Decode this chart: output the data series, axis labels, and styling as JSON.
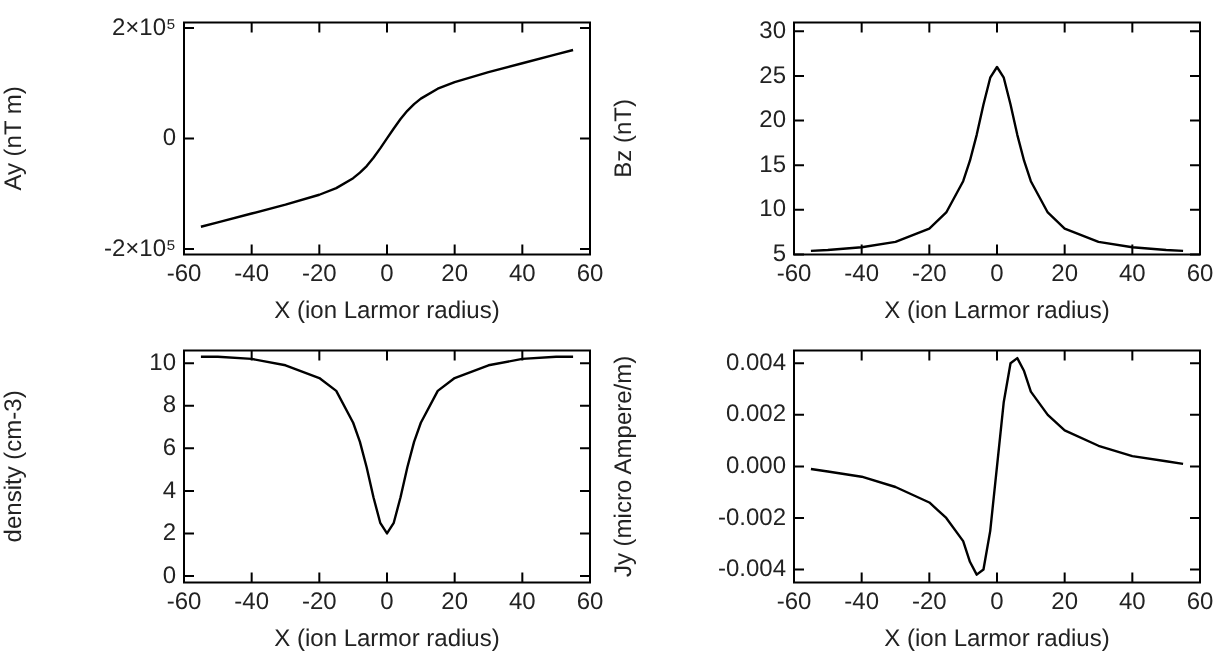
{
  "chart_data": [
    {
      "type": "line",
      "xlabel": "X (ion Larmor radius)",
      "ylabel": "Ay (nT m)",
      "marker": "none",
      "color": "#000000",
      "x": [
        -55,
        -50,
        -40,
        -30,
        -20,
        -15,
        -10,
        -8,
        -6,
        -4,
        -2,
        0,
        2,
        4,
        6,
        8,
        10,
        15,
        20,
        30,
        40,
        50,
        55
      ],
      "values": [
        -160000,
        -152000,
        -136000,
        -120000,
        -102000,
        -90000,
        -72000,
        -62000,
        -50000,
        -35000,
        -18000,
        0,
        18000,
        35000,
        50000,
        62000,
        72000,
        90000,
        102000,
        120000,
        136000,
        152000,
        160000
      ],
      "xlim": [
        -60,
        60
      ],
      "xticks": [
        -60,
        -40,
        -20,
        0,
        20,
        40,
        60
      ],
      "ylim": [
        -210000,
        210000
      ],
      "yticks": [
        {
          "value": -200000,
          "label": "-2×10⁵"
        },
        0,
        {
          "value": 200000,
          "label": "2×10⁵"
        }
      ]
    },
    {
      "type": "line",
      "xlabel": "X (ion Larmor radius)",
      "ylabel": "Bz (nT)",
      "marker": "none",
      "color": "#000000",
      "x": [
        -55,
        -50,
        -40,
        -30,
        -20,
        -15,
        -10,
        -8,
        -6,
        -4,
        -2,
        0,
        2,
        4,
        6,
        8,
        10,
        15,
        20,
        30,
        40,
        50,
        55
      ],
      "values": [
        5.4,
        5.5,
        5.8,
        6.4,
        7.9,
        9.7,
        13.2,
        15.5,
        18.4,
        21.8,
        24.8,
        26,
        24.8,
        21.8,
        18.4,
        15.5,
        13.2,
        9.7,
        7.9,
        6.4,
        5.8,
        5.5,
        5.4
      ],
      "xlim": [
        -60,
        60
      ],
      "xticks": [
        -60,
        -40,
        -20,
        0,
        20,
        40,
        60
      ],
      "ylim": [
        5,
        31
      ],
      "yticks": [
        5,
        10,
        15,
        20,
        25,
        30
      ]
    },
    {
      "type": "line",
      "xlabel": "X (ion Larmor radius)",
      "ylabel": "density (cm-3)",
      "marker": "none",
      "color": "#000000",
      "x": [
        -55,
        -50,
        -40,
        -30,
        -20,
        -15,
        -10,
        -8,
        -6,
        -4,
        -2,
        0,
        2,
        4,
        6,
        8,
        10,
        15,
        20,
        30,
        40,
        50,
        55
      ],
      "values": [
        10.3,
        10.3,
        10.2,
        9.9,
        9.3,
        8.7,
        7.2,
        6.3,
        5.1,
        3.7,
        2.5,
        2.0,
        2.5,
        3.7,
        5.1,
        6.3,
        7.2,
        8.7,
        9.3,
        9.9,
        10.2,
        10.3,
        10.3
      ],
      "xlim": [
        -60,
        60
      ],
      "xticks": [
        -60,
        -40,
        -20,
        0,
        20,
        40,
        60
      ],
      "ylim": [
        -0.3,
        10.6
      ],
      "yticks": [
        0,
        2,
        4,
        6,
        8,
        10
      ]
    },
    {
      "type": "line",
      "xlabel": "X (ion Larmor radius)",
      "ylabel": "Jy (micro Ampere/m)",
      "marker": "none",
      "color": "#000000",
      "x": [
        -55,
        -50,
        -40,
        -30,
        -20,
        -15,
        -10,
        -8,
        -6,
        -4,
        -2,
        0,
        2,
        4,
        6,
        8,
        10,
        15,
        20,
        30,
        40,
        50,
        55
      ],
      "values": [
        -0.0001,
        -0.0002,
        -0.0004,
        -0.0008,
        -0.0014,
        -0.002,
        -0.0029,
        -0.0037,
        -0.0042,
        -0.004,
        -0.0025,
        0,
        0.0025,
        0.004,
        0.0042,
        0.0037,
        0.0029,
        0.002,
        0.0014,
        0.0008,
        0.0004,
        0.0002,
        0.0001
      ],
      "xlim": [
        -60,
        60
      ],
      "xticks": [
        -60,
        -40,
        -20,
        0,
        20,
        40,
        60
      ],
      "ylim": [
        -0.0045,
        0.0045
      ],
      "yticks": [
        -0.004,
        -0.002,
        {
          "value": 0,
          "label": "0.000"
        },
        0.002,
        0.004
      ]
    }
  ]
}
